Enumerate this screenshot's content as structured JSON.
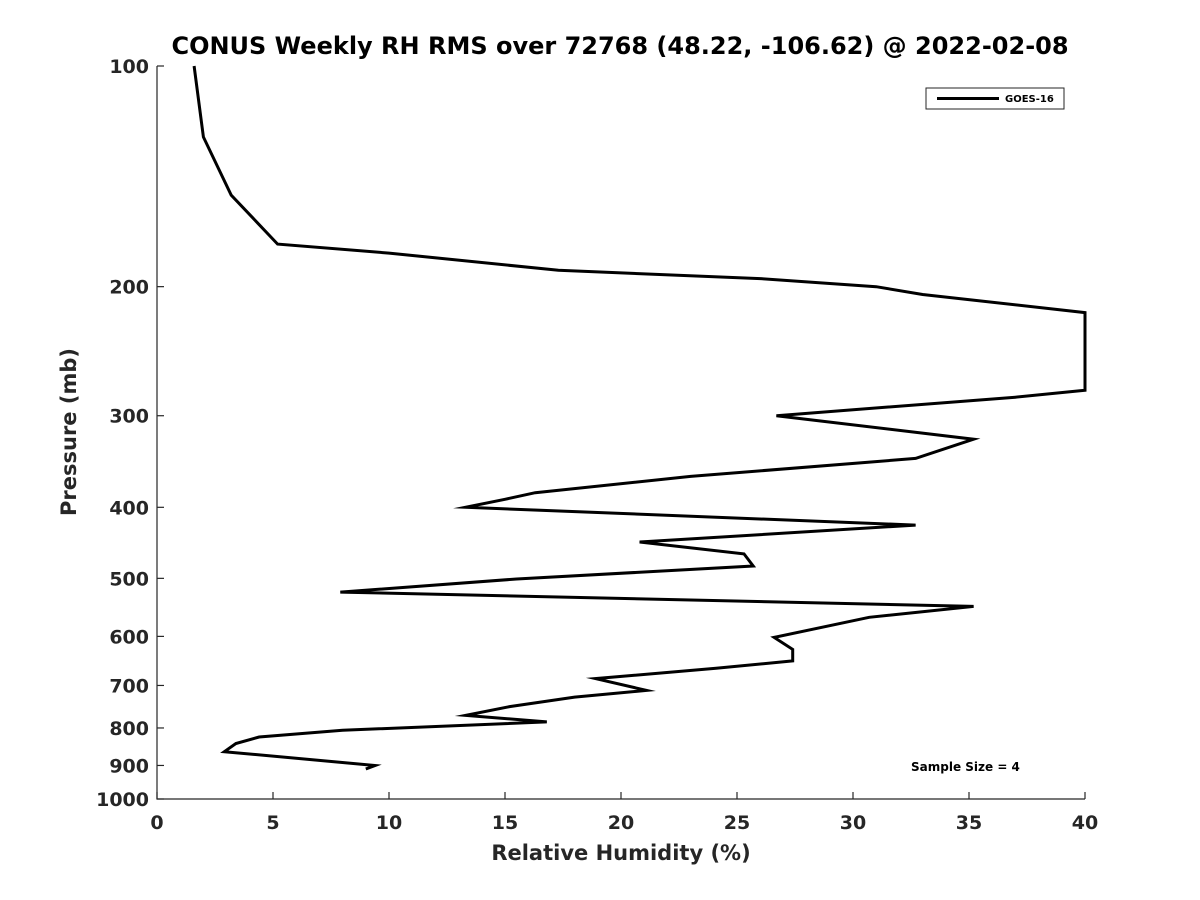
{
  "chart_data": {
    "type": "line",
    "title": "CONUS Weekly RH RMS over 72768 (48.22, -106.62) @ 2022-02-08",
    "xlabel": "Relative Humidity (%)",
    "ylabel": "Pressure (mb)",
    "xlim": [
      0,
      40
    ],
    "ylim": [
      100,
      1000
    ],
    "yscale": "log",
    "y_reversed": true,
    "xticks": [
      0,
      5,
      10,
      15,
      20,
      25,
      30,
      35,
      40
    ],
    "yticks": [
      100,
      200,
      300,
      400,
      500,
      600,
      700,
      800,
      900,
      1000
    ],
    "grid": false,
    "legend_position": "top-right",
    "series": [
      {
        "name": "GOES-16",
        "color": "#000000",
        "points": [
          [
            1.6,
            100
          ],
          [
            2.0,
            125
          ],
          [
            3.2,
            150
          ],
          [
            5.2,
            175
          ],
          [
            10.0,
            180
          ],
          [
            17.3,
            190
          ],
          [
            26.0,
            195
          ],
          [
            31.0,
            200
          ],
          [
            33.0,
            205
          ],
          [
            40.0,
            217
          ],
          [
            40.0,
            277
          ],
          [
            37.0,
            283
          ],
          [
            26.7,
            300
          ],
          [
            35.2,
            323
          ],
          [
            32.7,
            343
          ],
          [
            23.0,
            363
          ],
          [
            16.3,
            382
          ],
          [
            15.0,
            390
          ],
          [
            13.3,
            400
          ],
          [
            32.7,
            423
          ],
          [
            20.8,
            446
          ],
          [
            25.3,
            463
          ],
          [
            25.7,
            481
          ],
          [
            15.5,
            501
          ],
          [
            7.9,
            522
          ],
          [
            35.2,
            546
          ],
          [
            30.7,
            565
          ],
          [
            26.6,
            602
          ],
          [
            27.4,
            625
          ],
          [
            27.4,
            648
          ],
          [
            24.1,
            663
          ],
          [
            18.9,
            685
          ],
          [
            21.1,
            711
          ],
          [
            18.0,
            726
          ],
          [
            15.2,
            748
          ],
          [
            13.3,
            769
          ],
          [
            16.8,
            785
          ],
          [
            8.0,
            806
          ],
          [
            4.4,
            823
          ],
          [
            3.4,
            840
          ],
          [
            2.9,
            862
          ],
          [
            9.4,
            900
          ],
          [
            9.0,
            910
          ]
        ]
      }
    ],
    "annotation": "Sample Size = 4"
  }
}
